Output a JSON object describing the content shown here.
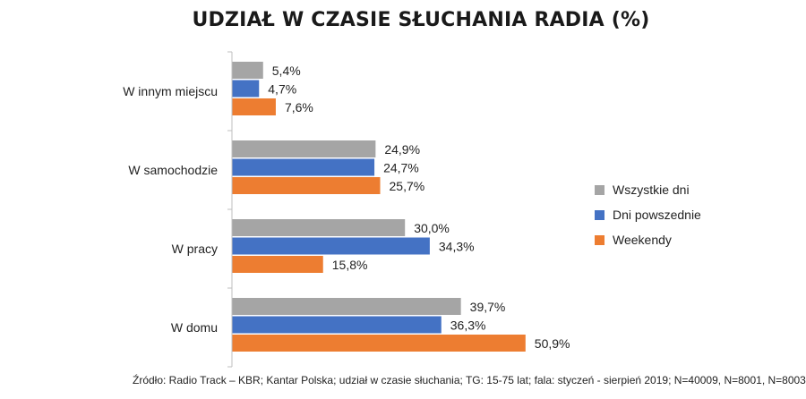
{
  "chart_data": {
    "type": "bar",
    "orientation": "horizontal",
    "title": "UDZIAŁ W CZASIE SŁUCHANIA RADIA (%)",
    "categories": [
      "W innym miejscu",
      "W samochodzie",
      "W pracy",
      "W domu"
    ],
    "series": [
      {
        "name": "Wszystkie dni",
        "color": "#a5a5a5",
        "values": [
          5.4,
          24.9,
          30.0,
          39.7
        ],
        "labels": [
          "5,4%",
          "24,9%",
          "30,0%",
          "39,7%"
        ]
      },
      {
        "name": "Dni powszednie",
        "color": "#4472c4",
        "values": [
          4.7,
          24.7,
          34.3,
          36.3
        ],
        "labels": [
          "4,7%",
          "24,7%",
          "34,3%",
          "36,3%"
        ]
      },
      {
        "name": "Weekendy",
        "color": "#ed7d31",
        "values": [
          7.6,
          25.7,
          15.8,
          50.9
        ],
        "labels": [
          "7,6%",
          "25,7%",
          "15,8%",
          "50,9%"
        ]
      }
    ],
    "xlim": [
      0,
      100
    ],
    "grid": false,
    "legend_position": "right",
    "source": "Źródło: Radio Track – KBR; Kantar Polska; udział w czasie słuchania; TG: 15-75 lat; fala: styczeń - sierpień 2019; N=40009, N=8001, N=8003"
  }
}
